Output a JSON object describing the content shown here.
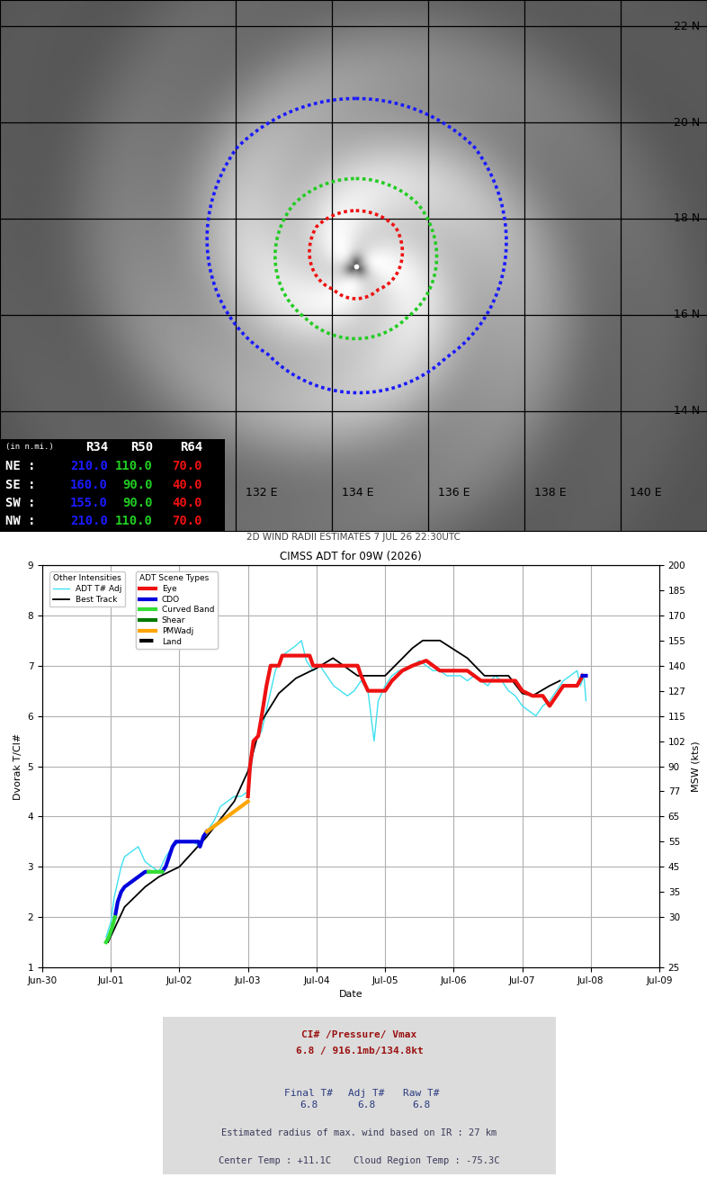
{
  "chart_data": {
    "type": "line",
    "title": "CIMSS ADT for 09W (2026)",
    "x_label": "Date",
    "y_label": "Dvorak T/CI#",
    "y2_label": "MSW (kts)",
    "xlim": [
      0,
      9
    ],
    "xticks": [
      {
        "value": 0,
        "label": "Jun-30"
      },
      {
        "value": 1,
        "label": "Jul-01"
      },
      {
        "value": 2,
        "label": "Jul-02"
      },
      {
        "value": 3,
        "label": "Jul-03"
      },
      {
        "value": 4,
        "label": "Jul-04"
      },
      {
        "value": 5,
        "label": "Jul-05"
      },
      {
        "value": 6,
        "label": "Jul-06"
      },
      {
        "value": 7,
        "label": "Jul-07"
      },
      {
        "value": 8,
        "label": "Jul-08"
      },
      {
        "value": 9,
        "label": "Jul-09"
      }
    ],
    "ylim": [
      1,
      9
    ],
    "yticks": [
      1,
      2,
      3,
      4,
      5,
      6,
      7,
      8,
      9
    ],
    "y2lim": [
      25,
      200
    ],
    "y2ticks": [
      25,
      30,
      35,
      45,
      55,
      65,
      77,
      90,
      102,
      115,
      127,
      140,
      155,
      170,
      185,
      200
    ],
    "msw_scale": {
      "t": [
        1,
        2,
        2.5,
        3,
        3.5,
        4,
        4.5,
        5,
        5.5,
        6,
        6.5,
        7,
        7.5,
        8,
        8.5,
        9
      ],
      "kt": [
        25,
        30,
        35,
        45,
        55,
        65,
        77,
        90,
        102,
        115,
        127,
        140,
        155,
        170,
        185,
        200
      ]
    },
    "grid": true,
    "legend": "upper left",
    "series_groups": [
      {
        "title": "Other Intensities",
        "series": [
          {
            "name": "ADT T# Adj",
            "color": "#40e0f0",
            "line_style": "solid",
            "x": [
              0.93,
              1.0,
              1.05,
              1.1,
              1.15,
              1.2,
              1.3,
              1.4,
              1.5,
              1.6,
              1.7,
              1.8,
              1.9,
              2.0,
              2.1,
              2.2,
              2.3,
              2.4,
              2.5,
              2.6,
              2.7,
              2.8,
              2.9,
              3.0,
              3.05,
              3.1,
              3.15,
              3.2,
              3.3,
              3.4,
              3.5,
              3.6,
              3.7,
              3.78,
              3.85,
              3.95,
              4.05,
              4.15,
              4.25,
              4.35,
              4.45,
              4.55,
              4.65,
              4.75,
              4.84,
              4.9,
              5.0,
              5.1,
              5.2,
              5.3,
              5.4,
              5.5,
              5.6,
              5.7,
              5.8,
              5.9,
              6.0,
              6.1,
              6.2,
              6.3,
              6.4,
              6.5,
              6.6,
              6.7,
              6.8,
              6.9,
              7.0,
              7.1,
              7.2,
              7.3,
              7.4,
              7.5,
              7.6,
              7.7,
              7.8,
              7.85,
              7.9,
              7.93
            ],
            "values": [
              1.6,
              1.9,
              2.4,
              2.7,
              3.0,
              3.2,
              3.3,
              3.4,
              3.1,
              3.0,
              2.9,
              3.2,
              3.4,
              3.5,
              3.5,
              3.5,
              3.4,
              3.7,
              3.9,
              4.2,
              4.3,
              4.4,
              4.4,
              4.5,
              5.0,
              5.5,
              5.6,
              5.7,
              6.3,
              6.9,
              7.2,
              7.3,
              7.4,
              7.5,
              7.1,
              6.9,
              7.0,
              6.8,
              6.6,
              6.5,
              6.4,
              6.5,
              6.7,
              6.5,
              5.5,
              6.3,
              6.6,
              6.8,
              6.9,
              6.9,
              7.0,
              7.1,
              7.0,
              6.9,
              6.9,
              6.8,
              6.8,
              6.8,
              6.7,
              6.8,
              6.7,
              6.6,
              6.8,
              6.7,
              6.5,
              6.4,
              6.2,
              6.1,
              6.0,
              6.2,
              6.3,
              6.5,
              6.7,
              6.8,
              6.9,
              6.6,
              6.8,
              6.3
            ]
          },
          {
            "name": "Best Track",
            "color": "#000000",
            "line_style": "solid",
            "x": [
              0.96,
              1.2,
              1.5,
              1.7,
              2.0,
              2.4,
              2.8,
              3.0,
              3.2,
              3.45,
              3.7,
              4.0,
              4.24,
              4.6,
              5.0,
              5.4,
              5.55,
              5.8,
              6.2,
              6.45,
              6.8,
              7.0,
              7.15,
              7.4,
              7.55
            ],
            "values": [
              1.5,
              2.2,
              2.6,
              2.8,
              3.0,
              3.6,
              4.3,
              4.9,
              5.9,
              6.45,
              6.75,
              6.95,
              7.15,
              6.8,
              6.8,
              7.35,
              7.5,
              7.5,
              7.15,
              6.8,
              6.8,
              6.45,
              6.4,
              6.6,
              6.7
            ]
          }
        ]
      },
      {
        "title": "ADT Scene Types",
        "series": [
          {
            "name": "Eye",
            "color": "#ee1111",
            "line_style": "solid",
            "x": [
              3.0,
              3.03,
              3.08,
              3.15,
              3.2,
              3.27,
              3.33,
              3.45,
              3.5,
              3.9,
              3.95,
              4.6,
              4.65,
              4.75,
              5.0,
              5.1,
              5.25,
              5.4,
              5.6,
              5.7,
              5.8,
              6.2,
              6.3,
              6.4,
              6.9,
              7.0,
              7.15,
              7.3,
              7.4,
              7.5,
              7.6,
              7.8,
              7.88
            ],
            "values": [
              4.4,
              5.0,
              5.5,
              5.6,
              6.0,
              6.6,
              7.0,
              7.0,
              7.2,
              7.2,
              7.0,
              7.0,
              6.8,
              6.5,
              6.5,
              6.7,
              6.9,
              7.0,
              7.1,
              7.0,
              6.9,
              6.9,
              6.8,
              6.7,
              6.7,
              6.5,
              6.4,
              6.4,
              6.2,
              6.4,
              6.6,
              6.6,
              6.8
            ]
          },
          {
            "name": "CDO",
            "color": "#0000dd",
            "line_style": "solid",
            "x": [
              1.06,
              1.1,
              1.15,
              1.2,
              1.3,
              1.4,
              1.5,
              1.55,
              1.65,
              1.75,
              1.8,
              1.85,
              1.9,
              1.95,
              2.0,
              2.1,
              2.2,
              2.28,
              2.3,
              2.35,
              2.4,
              5.0,
              7.88,
              7.93
            ],
            "values": [
              2.0,
              2.3,
              2.5,
              2.6,
              2.7,
              2.8,
              2.9,
              2.9,
              null,
              2.9,
              3.0,
              3.2,
              3.4,
              3.5,
              3.5,
              3.5,
              3.5,
              3.5,
              3.4,
              3.6,
              3.7,
              null,
              6.8,
              6.8
            ]
          },
          {
            "name": "Curved Band",
            "color": "#33dd33",
            "line_style": "solid",
            "x": [
              0.93,
              0.97,
              1.02,
              1.06,
              1.3,
              1.55,
              1.62,
              1.7,
              1.75
            ],
            "values": [
              1.5,
              1.6,
              1.8,
              2.0,
              null,
              2.9,
              2.9,
              2.9,
              2.9
            ]
          },
          {
            "name": "Shear",
            "color": "#007a00",
            "line_style": "solid",
            "x": [],
            "values": []
          },
          {
            "name": "PMWadj",
            "color": "#ffa500",
            "line_style": "solid",
            "x": [
              2.4,
              2.5,
              2.6,
              2.7,
              2.8,
              2.9,
              3.0
            ],
            "values": [
              3.7,
              3.8,
              3.9,
              4.0,
              4.1,
              4.2,
              4.3
            ]
          },
          {
            "name": "Land",
            "color": "#000000",
            "line_style": "dashed",
            "x": [],
            "values": []
          }
        ]
      }
    ]
  },
  "map_panel": {
    "xlim": [
      127.1,
      141.8
    ],
    "ylim": [
      11.5,
      22.55
    ],
    "xticks": [
      {
        "value": 132,
        "label": "132 E"
      },
      {
        "value": 134,
        "label": "134 E"
      },
      {
        "value": 136,
        "label": "136 E"
      },
      {
        "value": 138,
        "label": "138 E"
      },
      {
        "value": 140,
        "label": "140 E"
      }
    ],
    "yticks": [
      {
        "value": 14,
        "label": "14 N"
      },
      {
        "value": 16,
        "label": "16 N"
      },
      {
        "value": 18,
        "label": "18 N"
      },
      {
        "value": 20,
        "label": "20 N"
      },
      {
        "value": 22,
        "label": "22 N"
      }
    ],
    "center": [
      134.5,
      17.0
    ],
    "caption": "2D WIND RADII ESTIMATES 7 JUL 26 22:30UTC",
    "wind_radii": {
      "unit_label": "(in n.mi.)",
      "columns": [
        "R34",
        "R50",
        "R64"
      ],
      "colors": [
        "#1a1aff",
        "#22cc22",
        "#ee1111"
      ],
      "rows": [
        {
          "quadrant": "NE :",
          "values": [
            210.0,
            110.0,
            70.0
          ]
        },
        {
          "quadrant": "SE :",
          "values": [
            160.0,
            90.0,
            40.0
          ]
        },
        {
          "quadrant": "SW :",
          "values": [
            155.0,
            90.0,
            40.0
          ]
        },
        {
          "quadrant": "NW :",
          "values": [
            210.0,
            110.0,
            70.0
          ]
        }
      ]
    }
  },
  "adt_summary": {
    "ci_header": "CI# /Pressure/ Vmax",
    "ci_values": "6.8 / 916.1mb/134.8kt",
    "t_labels": [
      "Final T#",
      "Adj T#",
      "Raw T#"
    ],
    "t_values": [
      6.8,
      6.8,
      6.8
    ],
    "rmw_text": "Estimated radius of max. wind based on IR : 27 km",
    "temps_text": "Center Temp : +11.1C    Cloud Region Temp : -75.3C"
  }
}
